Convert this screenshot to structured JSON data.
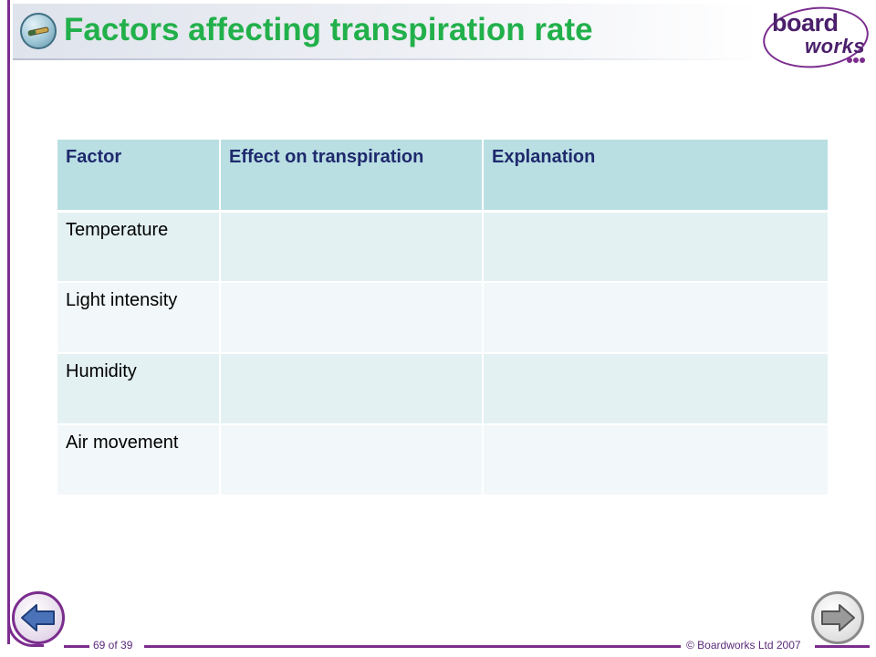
{
  "slide": {
    "title": "Factors affecting transpiration rate",
    "counter": "69 of 39",
    "copyright": "© Boardworks Ltd 2007"
  },
  "logo": {
    "line1": "board",
    "line2": "works"
  },
  "table": {
    "headers": [
      "Factor",
      "Effect on transpiration",
      "Explanation"
    ],
    "rows": [
      [
        "Temperature",
        "",
        ""
      ],
      [
        "Light intensity",
        "",
        ""
      ],
      [
        "Humidity",
        "",
        ""
      ],
      [
        "Air movement",
        "",
        ""
      ]
    ]
  },
  "icons": {
    "topic_badge": "test-tube-badge-icon",
    "back": "back-arrow-icon",
    "forward": "forward-arrow-icon"
  },
  "colors": {
    "title": "#22b04b",
    "frame": "#7b2d8e",
    "table_header": "#b9dfe3",
    "table_row_dark": "#e4f1f3",
    "table_row_light": "#f2f8f9",
    "header_text": "#1f2a6d"
  }
}
